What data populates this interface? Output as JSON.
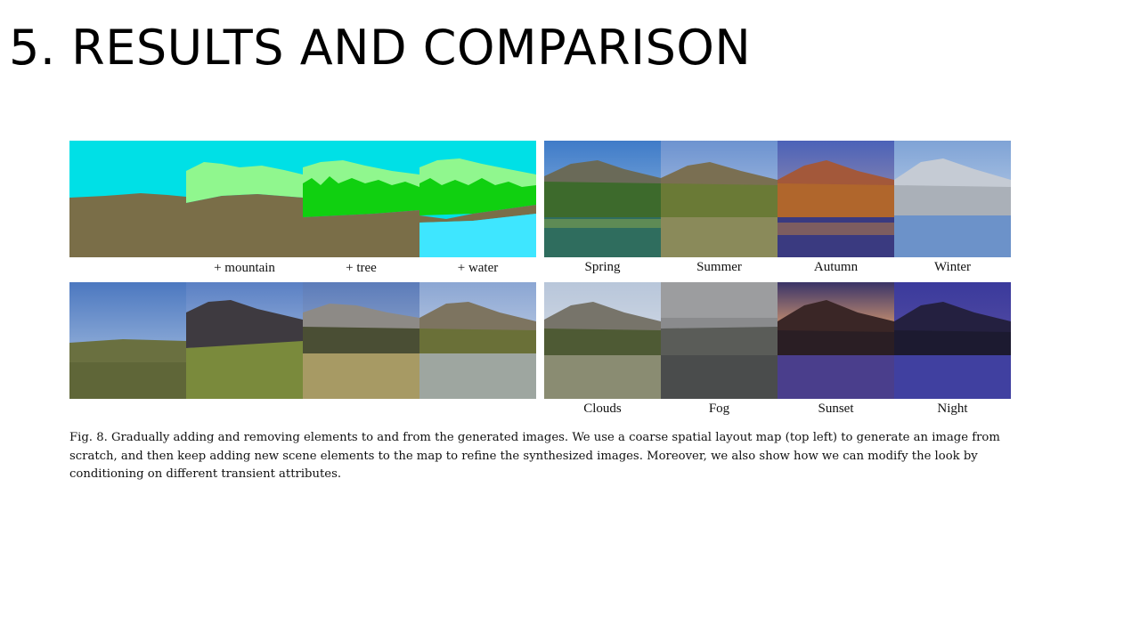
{
  "slide": {
    "title": "5. RESULTS AND COMPARISON"
  },
  "figure": {
    "row1_labels": [
      "",
      "+ mountain",
      "+ tree",
      "+ water"
    ],
    "season_labels": [
      "Spring",
      "Summer",
      "Autumn",
      "Winter"
    ],
    "weather_labels": [
      "Clouds",
      "Fog",
      "Sunset",
      "Night"
    ],
    "caption": "Fig. 8.  Gradually adding and removing elements to and from the generated images. We use a coarse spatial layout map (top left) to generate an image from scratch, and then keep adding new scene elements to the map to refine the synthesized images. Moreover, we also show how we can modify the look by conditioning on different transient attributes.",
    "colors": {
      "layout_sky": "#00e0e6",
      "layout_ground": "#7a6e48",
      "layout_mountain": "#90f78e",
      "layout_tree": "#10d010",
      "layout_water": "#3ee6ff"
    }
  }
}
